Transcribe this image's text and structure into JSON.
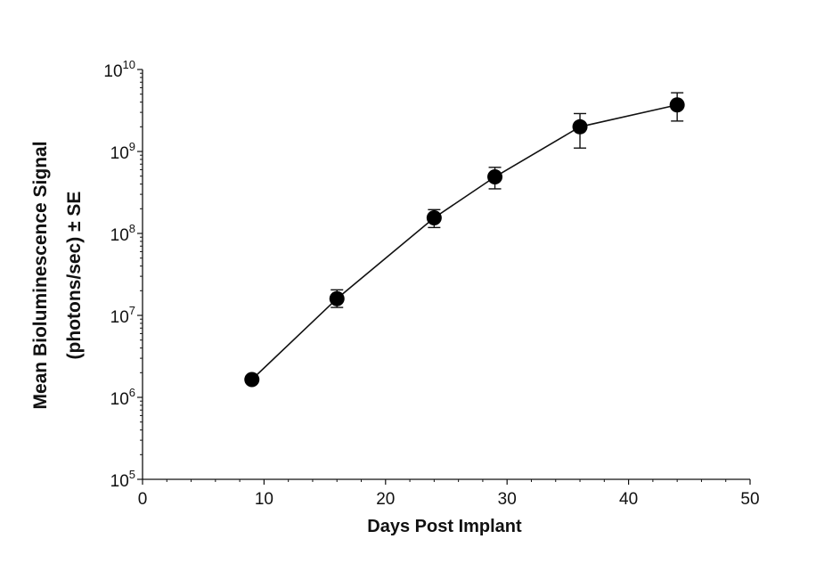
{
  "chart_data": {
    "type": "line",
    "title": "",
    "xlabel": "Days Post Implant",
    "ylabel_line1": "Mean Bioluminescence Signal",
    "ylabel_line2": "(photons/sec) ± SE",
    "xlim": [
      0,
      50
    ],
    "ylim": [
      100000,
      10000000000
    ],
    "yscale": "log",
    "grid": false,
    "x_ticks": [
      0,
      10,
      20,
      30,
      40,
      50
    ],
    "x_tick_labels": [
      "0",
      "10",
      "20",
      "30",
      "40",
      "50"
    ],
    "y_ticks": [
      100000,
      1000000,
      10000000,
      100000000,
      1000000000,
      10000000000
    ],
    "y_tick_base": "10",
    "y_tick_exponents": [
      "5",
      "6",
      "7",
      "8",
      "9",
      "10"
    ],
    "series": [
      {
        "x": [
          9,
          16,
          24,
          29,
          36,
          44
        ],
        "y": [
          1650000,
          16000000,
          155000000,
          490000000,
          2000000000,
          3700000000
        ],
        "err_low": [
          1550000,
          12500000,
          118000000,
          350000000,
          1100000000,
          2350000000
        ],
        "err_high": [
          1750000,
          20500000,
          195000000,
          640000000,
          2900000000,
          5200000000
        ]
      }
    ],
    "colors": {
      "line": "#111111",
      "marker": "#000000"
    }
  }
}
